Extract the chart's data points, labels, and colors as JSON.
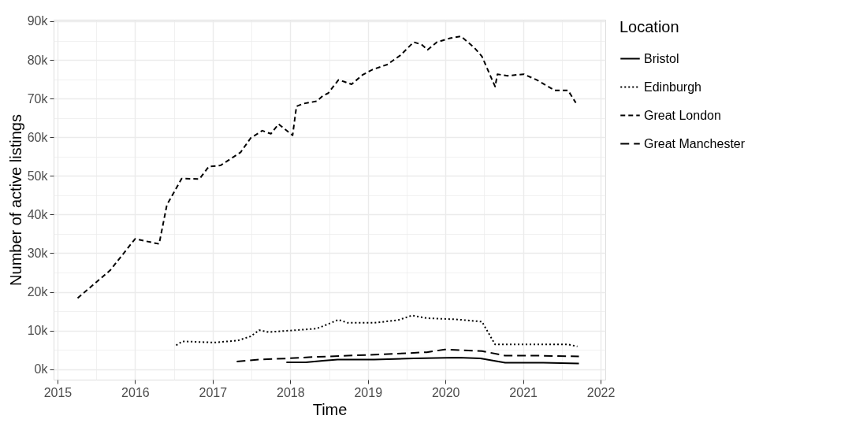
{
  "chart_data": {
    "type": "line",
    "xlabel": "Time",
    "ylabel": "Number of active listings",
    "legend_title": "Location",
    "legend": "right",
    "grid": true,
    "xlim": [
      2014.95,
      2022.06
    ],
    "ylim": [
      -2700,
      90400
    ],
    "xticks": [
      2015,
      {
        "value": 2015.5,
        "label": null
      },
      2016,
      {
        "value": 2016.5,
        "label": null
      },
      2017,
      {
        "value": 2017.5,
        "label": null
      },
      2018,
      {
        "value": 2018.5,
        "label": null
      },
      2019,
      {
        "value": 2019.5,
        "label": null
      },
      2020,
      {
        "value": 2020.5,
        "label": null
      },
      2021,
      {
        "value": 2021.5,
        "label": null
      },
      2022
    ],
    "yticks": [
      {
        "value": 0,
        "label": "0k"
      },
      {
        "value": 5000,
        "label": null
      },
      {
        "value": 10000,
        "label": "10k"
      },
      {
        "value": 15000,
        "label": null
      },
      {
        "value": 20000,
        "label": "20k"
      },
      {
        "value": 25000,
        "label": null
      },
      {
        "value": 30000,
        "label": "30k"
      },
      {
        "value": 35000,
        "label": null
      },
      {
        "value": 40000,
        "label": "40k"
      },
      {
        "value": 45000,
        "label": null
      },
      {
        "value": 50000,
        "label": "50k"
      },
      {
        "value": 55000,
        "label": null
      },
      {
        "value": 60000,
        "label": "60k"
      },
      {
        "value": 65000,
        "label": null
      },
      {
        "value": 70000,
        "label": "70k"
      },
      {
        "value": 75000,
        "label": null
      },
      {
        "value": 80000,
        "label": "80k"
      },
      {
        "value": 85000,
        "label": null
      },
      {
        "value": 90000,
        "label": "90k"
      }
    ],
    "series": [
      {
        "name": "Bristol",
        "color": "#000000",
        "line_style": "solid",
        "x": [
          2017.95,
          2018.2,
          2018.42,
          2018.61,
          2019.08,
          2019.59,
          2020.16,
          2020.45,
          2020.77,
          2021.26,
          2021.72
        ],
        "values": [
          1800,
          1800,
          2200,
          2500,
          2500,
          2800,
          3000,
          2800,
          1700,
          1700,
          1500
        ]
      },
      {
        "name": "Edinburgh",
        "color": "#000000",
        "line_style": "dotted",
        "x": [
          2016.53,
          2016.61,
          2017.02,
          2017.32,
          2017.49,
          2017.6,
          2017.72,
          2018.0,
          2018.34,
          2018.49,
          2018.62,
          2018.74,
          2019.08,
          2019.39,
          2019.57,
          2019.76,
          2020.13,
          2020.47,
          2020.64,
          2021.01,
          2021.58,
          2021.7
        ],
        "values": [
          6200,
          7200,
          6900,
          7400,
          8500,
          10100,
          9600,
          10000,
          10500,
          11700,
          12800,
          12000,
          12000,
          12700,
          13900,
          13200,
          12900,
          12300,
          6400,
          6400,
          6400,
          5900
        ]
      },
      {
        "name": "Great London",
        "color": "#000000",
        "line_style": "dashed",
        "x": [
          2015.26,
          2015.68,
          2016.0,
          2016.31,
          2016.41,
          2016.6,
          2016.83,
          2016.95,
          2017.1,
          2017.36,
          2017.49,
          2017.64,
          2017.75,
          2017.85,
          2018.03,
          2018.08,
          2018.17,
          2018.34,
          2018.42,
          2018.49,
          2018.62,
          2018.69,
          2018.79,
          2018.93,
          2019.06,
          2019.25,
          2019.42,
          2019.59,
          2019.69,
          2019.77,
          2019.89,
          2020.06,
          2020.2,
          2020.37,
          2020.47,
          2020.64,
          2020.67,
          2020.8,
          2021.01,
          2021.18,
          2021.41,
          2021.58,
          2021.68
        ],
        "values": [
          18400,
          25600,
          33700,
          32400,
          42500,
          49300,
          49200,
          52400,
          52700,
          56100,
          59800,
          61700,
          60900,
          63400,
          60500,
          68000,
          68700,
          69300,
          70700,
          71400,
          74800,
          74400,
          73700,
          76100,
          77500,
          78800,
          81200,
          84600,
          84000,
          82600,
          84600,
          85600,
          86100,
          83200,
          80900,
          73100,
          76300,
          75900,
          76300,
          74800,
          72100,
          72100,
          68900
        ]
      },
      {
        "name": "Great Manchester",
        "color": "#000000",
        "line_style": "longdash",
        "x": [
          2017.31,
          2017.6,
          2017.97,
          2018.24,
          2018.74,
          2019.35,
          2019.76,
          2019.99,
          2020.47,
          2020.77,
          2021.21,
          2021.72
        ],
        "values": [
          2000,
          2500,
          2800,
          3100,
          3500,
          4000,
          4400,
          5100,
          4700,
          3500,
          3500,
          3300
        ]
      }
    ]
  }
}
